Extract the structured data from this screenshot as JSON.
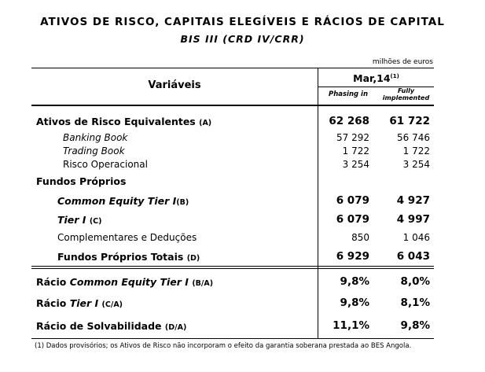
{
  "title": "ATIVOS DE RISCO, CAPITAIS ELEGÍVEIS E RÁCIOS DE CAPITAL",
  "subtitle": "BIS III (CRD IV/CRR)",
  "unit": "milhões de euros",
  "header": {
    "variables": "Variáveis",
    "period": "Mar,14",
    "period_note": "(1)",
    "col1": "Phasing in",
    "col2_line1": "Fully",
    "col2_line2": "implemented"
  },
  "rows": {
    "rwa": {
      "label": "Ativos de Risco Equivalentes",
      "tag": "(A)",
      "v1": "62 268",
      "v2": "61 722"
    },
    "banking": {
      "label": "Banking Book",
      "v1": "57 292",
      "v2": "56 746"
    },
    "trading": {
      "label": "Trading Book",
      "v1": "1 722",
      "v2": "1 722"
    },
    "operational": {
      "label": "Risco Operacional",
      "v1": "3 254",
      "v2": "3 254"
    },
    "own_funds_header": {
      "label": "Fundos Próprios"
    },
    "cet1": {
      "label": "Common Equity Tier I",
      "tag": "(B)",
      "v1": "6 079",
      "v2": "4 927"
    },
    "tier1": {
      "label": "Tier I",
      "tag": "(C)",
      "v1": "6 079",
      "v2": "4 997"
    },
    "complementary": {
      "label": "Complementares e Deduções",
      "v1": "850",
      "v2": "1 046"
    },
    "total_funds": {
      "label": "Fundos Próprios Totais",
      "tag": "(D)",
      "v1": "6 929",
      "v2": "6 043"
    },
    "ratio_cet1": {
      "prefix": "Rácio",
      "label": "Common Equity Tier I",
      "tag": "(B/A)",
      "v1": "9,8%",
      "v2": "8,0%"
    },
    "ratio_tier1": {
      "prefix": "Rácio",
      "label": "Tier I",
      "tag": "(C/A)",
      "v1": "9,8%",
      "v2": "8,1%"
    },
    "ratio_solv": {
      "label": "Rácio de Solvabilidade",
      "tag": "(D/A)",
      "v1": "11,1%",
      "v2": "9,8%"
    }
  },
  "footnote": "(1) Dados provisórios; os Ativos de Risco não incorporam o efeito da garantia soberana prestada ao BES Angola."
}
